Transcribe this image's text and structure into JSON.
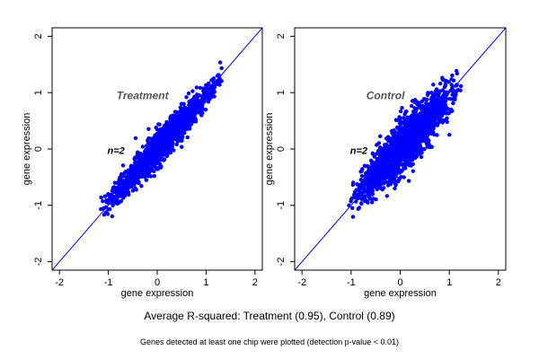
{
  "chart_data": [
    {
      "type": "scatter",
      "group_label": "Treatment",
      "n_label": "n=2",
      "xlabel": "gene expression",
      "ylabel": "gene expression",
      "xlim": [
        -2.15,
        2.15
      ],
      "ylim": [
        -2.15,
        2.15
      ],
      "xticks": [
        -2,
        -1,
        0,
        1,
        2
      ],
      "yticks": [
        -2,
        -1,
        0,
        1,
        2
      ],
      "reference_line": "y = x",
      "grid": false,
      "point_color": "#0000ff",
      "cloud": {
        "n_points": 1700,
        "center": [
          0.02,
          0.02
        ],
        "x_range": [
          -1.15,
          1.3
        ],
        "slope": 0.95,
        "spread": 0.15
      }
    },
    {
      "type": "scatter",
      "group_label": "Control",
      "n_label": "n=2",
      "xlabel": "gene expression",
      "ylabel": "gene expression",
      "xlim": [
        -2.15,
        2.15
      ],
      "ylim": [
        -2.15,
        2.15
      ],
      "xticks": [
        -2,
        -1,
        0,
        1,
        2
      ],
      "yticks": [
        -2,
        -1,
        0,
        1,
        2
      ],
      "reference_line": "y = x",
      "grid": false,
      "point_color": "#0000ff",
      "cloud": {
        "n_points": 1800,
        "center": [
          0.02,
          0.02
        ],
        "x_range": [
          -1.0,
          1.2
        ],
        "slope": 0.9,
        "spread": 0.24
      }
    }
  ],
  "summary": "Average R-squared: Treatment (0.95), Control (0.89)",
  "footnote": "Genes detected at least one chip were plotted (detection p-value < 0.01)",
  "colors": {
    "points": "#0000ff",
    "reference_line": "#0000ff",
    "axes": "#000000",
    "group_label": "#555555"
  }
}
